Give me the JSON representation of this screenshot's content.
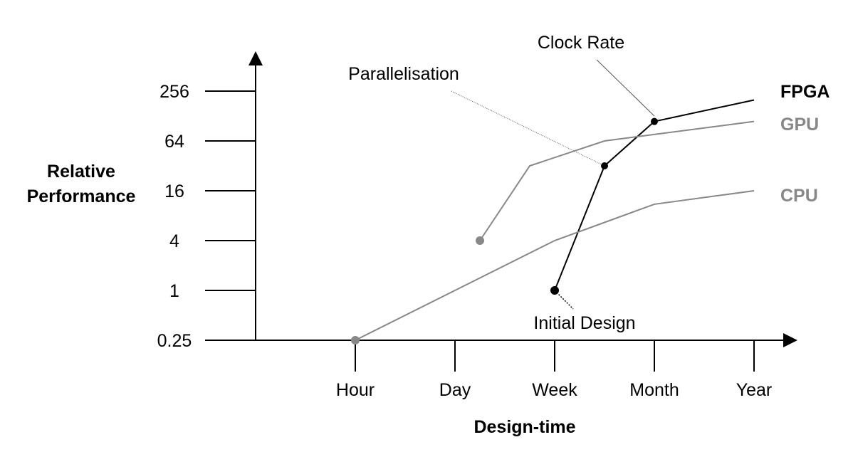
{
  "chart_data": {
    "type": "line",
    "xlabel": "Design-time",
    "ylabel_lines": [
      "Relative",
      "Performance"
    ],
    "x_categories": [
      "Hour",
      "Day",
      "Week",
      "Month",
      "Year"
    ],
    "y_ticks": [
      0.25,
      1,
      4,
      16,
      64,
      256
    ],
    "y_tick_labels": [
      "0.25",
      "1",
      "4",
      "16",
      "64",
      "256"
    ],
    "y_scale": "log",
    "y_range": [
      0.25,
      256
    ],
    "grid": false,
    "legend_placement": "right, at line ends",
    "series": [
      {
        "name": "FPGA",
        "color": "#000000",
        "points": [
          {
            "x": "Week",
            "y": 1
          },
          {
            "x": "between Week and Month",
            "y": 32
          },
          {
            "x": "Month",
            "y": 110
          },
          {
            "x": "Year",
            "y": 200
          }
        ]
      },
      {
        "name": "GPU",
        "color": "#888888",
        "points": [
          {
            "x": "between Day and Week",
            "y": 4
          },
          {
            "x": "between Day and Week",
            "y": 32
          },
          {
            "x": "between Week and Month",
            "y": 64
          },
          {
            "x": "Year",
            "y": 110
          }
        ]
      },
      {
        "name": "CPU",
        "color": "#888888",
        "points": [
          {
            "x": "Hour",
            "y": 0.25
          },
          {
            "x": "Day",
            "y": 1
          },
          {
            "x": "Week",
            "y": 4
          },
          {
            "x": "Month",
            "y": 11
          },
          {
            "x": "Year",
            "y": 16
          }
        ]
      }
    ],
    "annotations": [
      "Clock Rate",
      "Parallelisation",
      "Initial Design"
    ]
  }
}
